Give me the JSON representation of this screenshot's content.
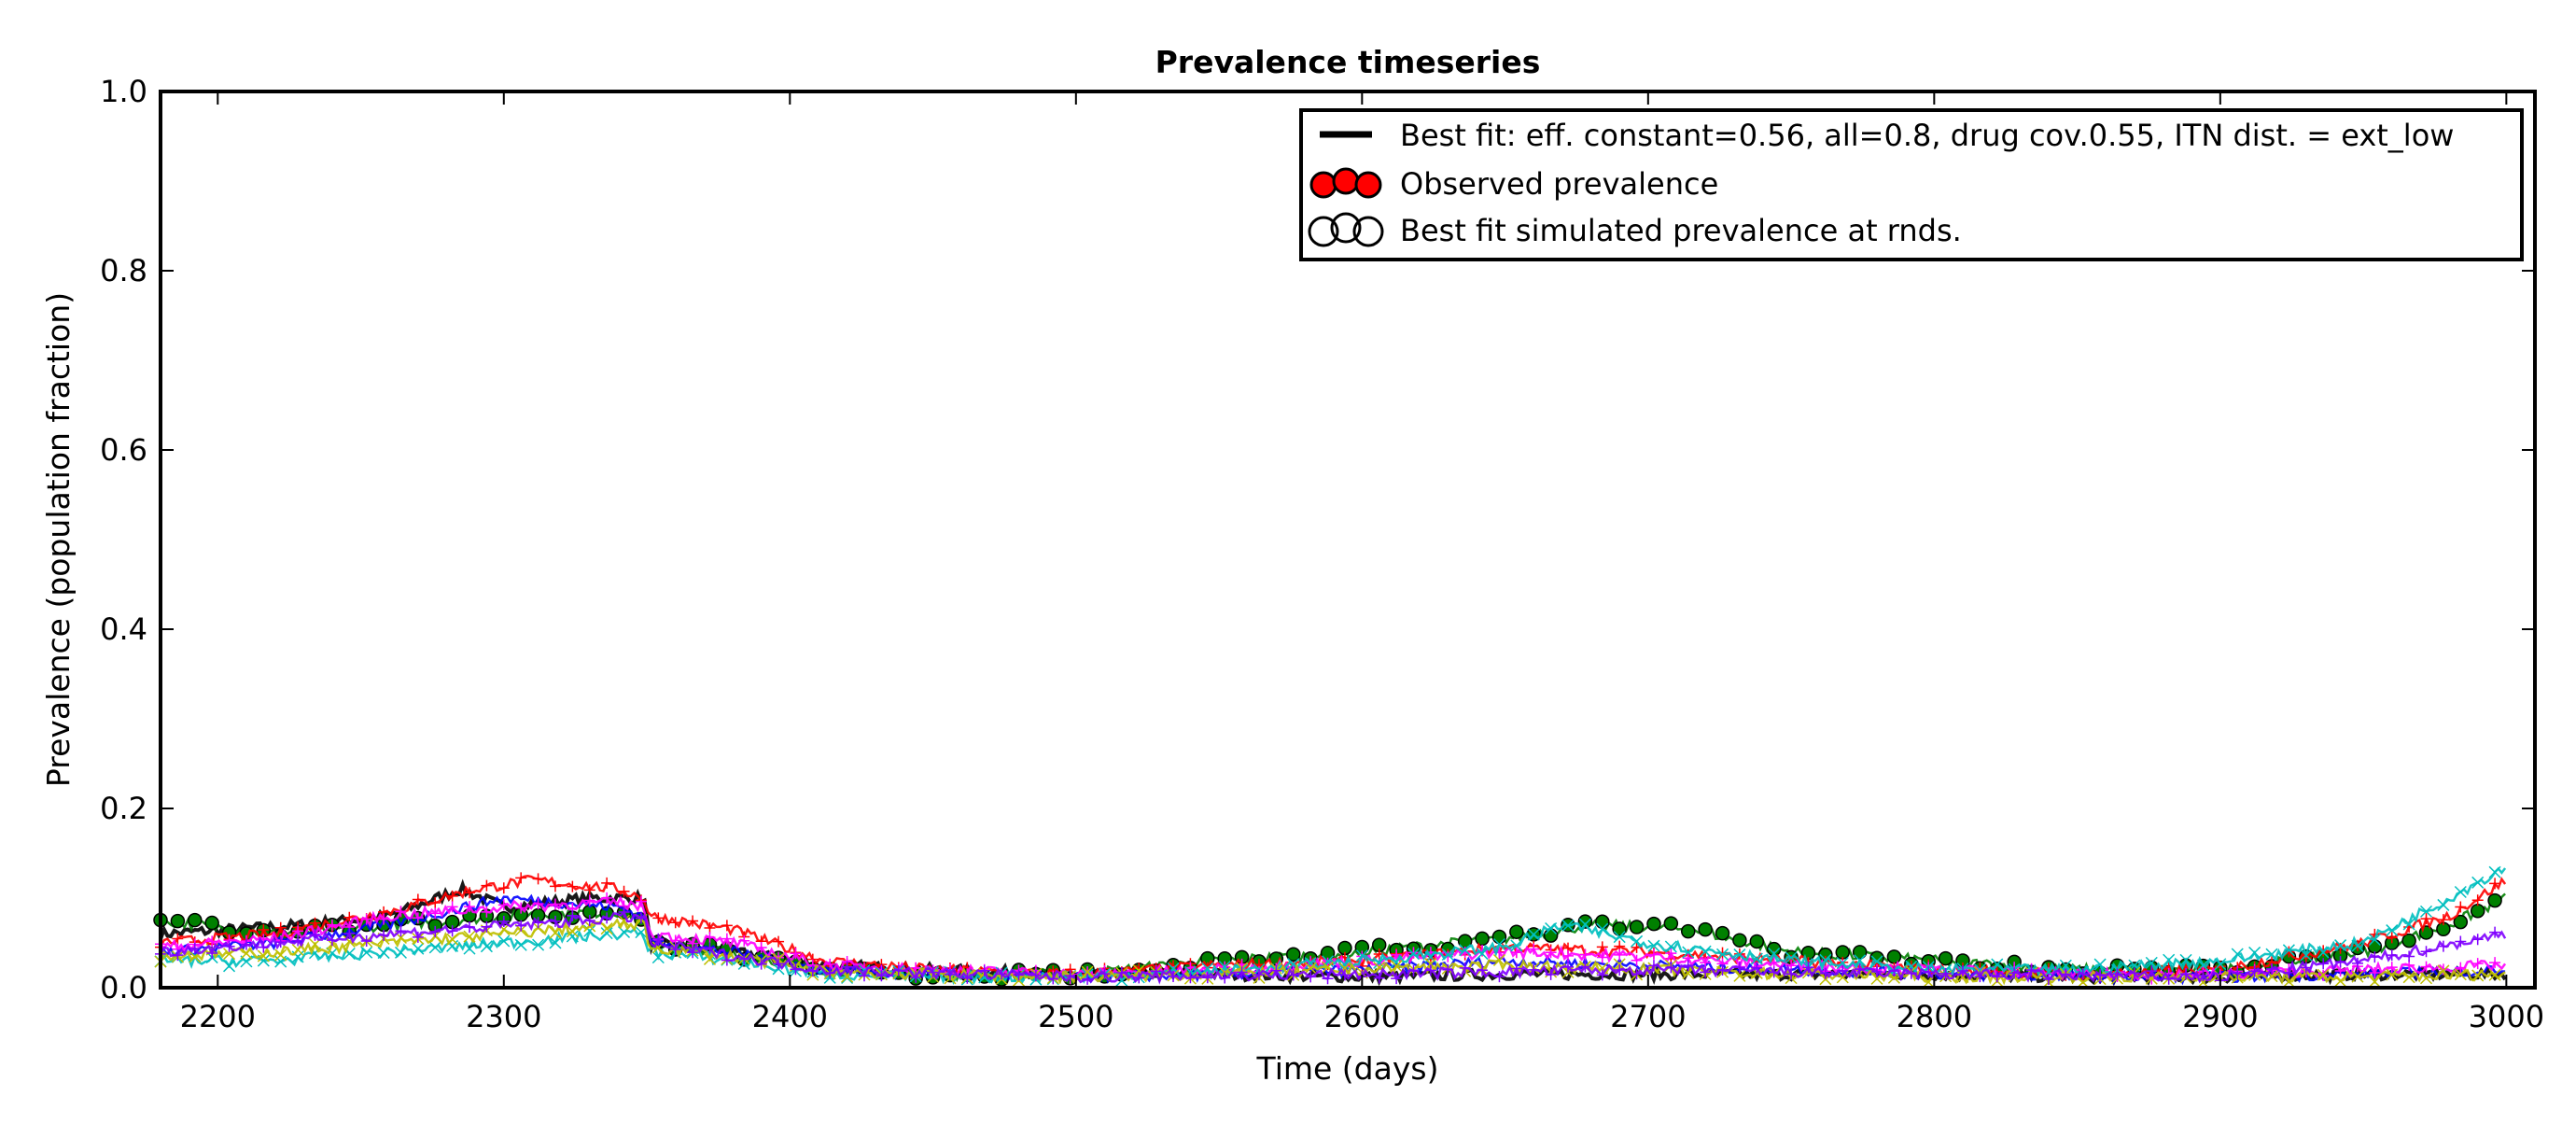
{
  "chart_data": {
    "type": "line",
    "title": "Prevalence timeseries",
    "xlabel": "Time (days)",
    "ylabel": "Prevalence (population fraction)",
    "xlim": [
      2180,
      3010
    ],
    "ylim": [
      0.0,
      1.0
    ],
    "xticks": [
      2200,
      2300,
      2400,
      2500,
      2600,
      2700,
      2800,
      2900,
      3000
    ],
    "yticks": [
      0.0,
      0.2,
      0.4,
      0.6,
      0.8,
      1.0
    ],
    "xtick_labels": [
      "2200",
      "2300",
      "2400",
      "2500",
      "2600",
      "2700",
      "2800",
      "2900",
      "3000"
    ],
    "ytick_labels": [
      "0.0",
      "0.2",
      "0.4",
      "0.6",
      "0.8",
      "1.0"
    ],
    "grid": false,
    "legend_position": "top-right",
    "legend": [
      {
        "label": "Best fit: eff. constant=0.56, all=0.8, drug cov.0.55, ITN dist. = ext_low",
        "marker": "line",
        "color": "#000000"
      },
      {
        "label": "Observed prevalence",
        "marker": "filled-circles",
        "color": "#ff0000"
      },
      {
        "label": "Best fit simulated prevalence at rnds.",
        "marker": "open-circles",
        "color": "#000000"
      }
    ],
    "series": [
      {
        "color": "#000000",
        "marker": "line",
        "x": [
          2180,
          2230,
          2260,
          2285,
          2300,
          2330,
          2349,
          2351,
          2380,
          2412,
          2450,
          2500,
          2550,
          2600,
          2650,
          2700,
          2750,
          2800,
          2850,
          2900,
          2950,
          3000
        ],
        "y": [
          0.06,
          0.07,
          0.08,
          0.11,
          0.09,
          0.1,
          0.1,
          0.05,
          0.04,
          0.025,
          0.02,
          0.015,
          0.015,
          0.012,
          0.015,
          0.015,
          0.015,
          0.015,
          0.012,
          0.012,
          0.015,
          0.015
        ]
      },
      {
        "color": "#008000",
        "marker": "circle",
        "x": [
          2180,
          2220,
          2260,
          2300,
          2340,
          2349,
          2351,
          2380,
          2412,
          2450,
          2500,
          2550,
          2600,
          2650,
          2680,
          2715,
          2750,
          2800,
          2850,
          2900,
          2950,
          2980,
          3000
        ],
        "y": [
          0.075,
          0.06,
          0.07,
          0.08,
          0.085,
          0.08,
          0.05,
          0.04,
          0.02,
          0.015,
          0.015,
          0.03,
          0.04,
          0.055,
          0.07,
          0.065,
          0.04,
          0.03,
          0.02,
          0.02,
          0.04,
          0.07,
          0.1
        ]
      },
      {
        "color": "#ff0000",
        "marker": "plus",
        "x": [
          2180,
          2220,
          2260,
          2290,
          2310,
          2340,
          2349,
          2351,
          2380,
          2412,
          2450,
          2500,
          2550,
          2600,
          2650,
          2700,
          2750,
          2800,
          2850,
          2900,
          2950,
          2980,
          3000
        ],
        "y": [
          0.05,
          0.06,
          0.085,
          0.11,
          0.12,
          0.11,
          0.1,
          0.08,
          0.065,
          0.03,
          0.02,
          0.015,
          0.025,
          0.03,
          0.045,
          0.04,
          0.03,
          0.02,
          0.015,
          0.02,
          0.05,
          0.08,
          0.12
        ]
      },
      {
        "color": "#0000ff",
        "marker": "line",
        "x": [
          2180,
          2220,
          2260,
          2300,
          2340,
          2349,
          2351,
          2380,
          2412,
          2450,
          2500,
          2550,
          2600,
          2650,
          2700,
          2750,
          2800,
          2850,
          2900,
          2950,
          3000
        ],
        "y": [
          0.04,
          0.05,
          0.07,
          0.1,
          0.09,
          0.08,
          0.05,
          0.04,
          0.02,
          0.015,
          0.012,
          0.015,
          0.02,
          0.03,
          0.025,
          0.02,
          0.015,
          0.012,
          0.012,
          0.015,
          0.02
        ]
      },
      {
        "color": "#ff00ff",
        "marker": "plus",
        "x": [
          2180,
          2220,
          2260,
          2300,
          2340,
          2349,
          2351,
          2380,
          2412,
          2450,
          2500,
          2550,
          2600,
          2650,
          2700,
          2750,
          2800,
          2850,
          2900,
          2950,
          3000
        ],
        "y": [
          0.045,
          0.055,
          0.08,
          0.09,
          0.095,
          0.09,
          0.06,
          0.05,
          0.025,
          0.02,
          0.015,
          0.02,
          0.03,
          0.04,
          0.035,
          0.025,
          0.02,
          0.015,
          0.015,
          0.02,
          0.025
        ]
      },
      {
        "color": "#00bfbf",
        "marker": "x",
        "x": [
          2180,
          2220,
          2260,
          2300,
          2340,
          2349,
          2351,
          2380,
          2412,
          2450,
          2500,
          2550,
          2600,
          2650,
          2670,
          2700,
          2750,
          2800,
          2850,
          2900,
          2950,
          2980,
          3000
        ],
        "y": [
          0.03,
          0.03,
          0.04,
          0.05,
          0.06,
          0.06,
          0.04,
          0.03,
          0.015,
          0.012,
          0.012,
          0.018,
          0.03,
          0.045,
          0.07,
          0.05,
          0.03,
          0.02,
          0.02,
          0.03,
          0.05,
          0.1,
          0.135
        ]
      },
      {
        "color": "#bfbf00",
        "marker": "x",
        "x": [
          2180,
          2220,
          2260,
          2300,
          2340,
          2349,
          2351,
          2380,
          2412,
          2450,
          2500,
          2550,
          2600,
          2650,
          2700,
          2750,
          2800,
          2850,
          2900,
          2950,
          3000
        ],
        "y": [
          0.035,
          0.04,
          0.05,
          0.06,
          0.07,
          0.07,
          0.045,
          0.035,
          0.018,
          0.015,
          0.012,
          0.015,
          0.02,
          0.025,
          0.02,
          0.015,
          0.012,
          0.012,
          0.012,
          0.012,
          0.015
        ]
      },
      {
        "color": "#8000ff",
        "marker": "plus",
        "x": [
          2180,
          2260,
          2349,
          2351,
          2412,
          2500,
          2600,
          2700,
          2800,
          2900,
          2950,
          3000
        ],
        "y": [
          0.04,
          0.06,
          0.08,
          0.05,
          0.02,
          0.012,
          0.015,
          0.02,
          0.015,
          0.012,
          0.03,
          0.06
        ]
      }
    ]
  }
}
